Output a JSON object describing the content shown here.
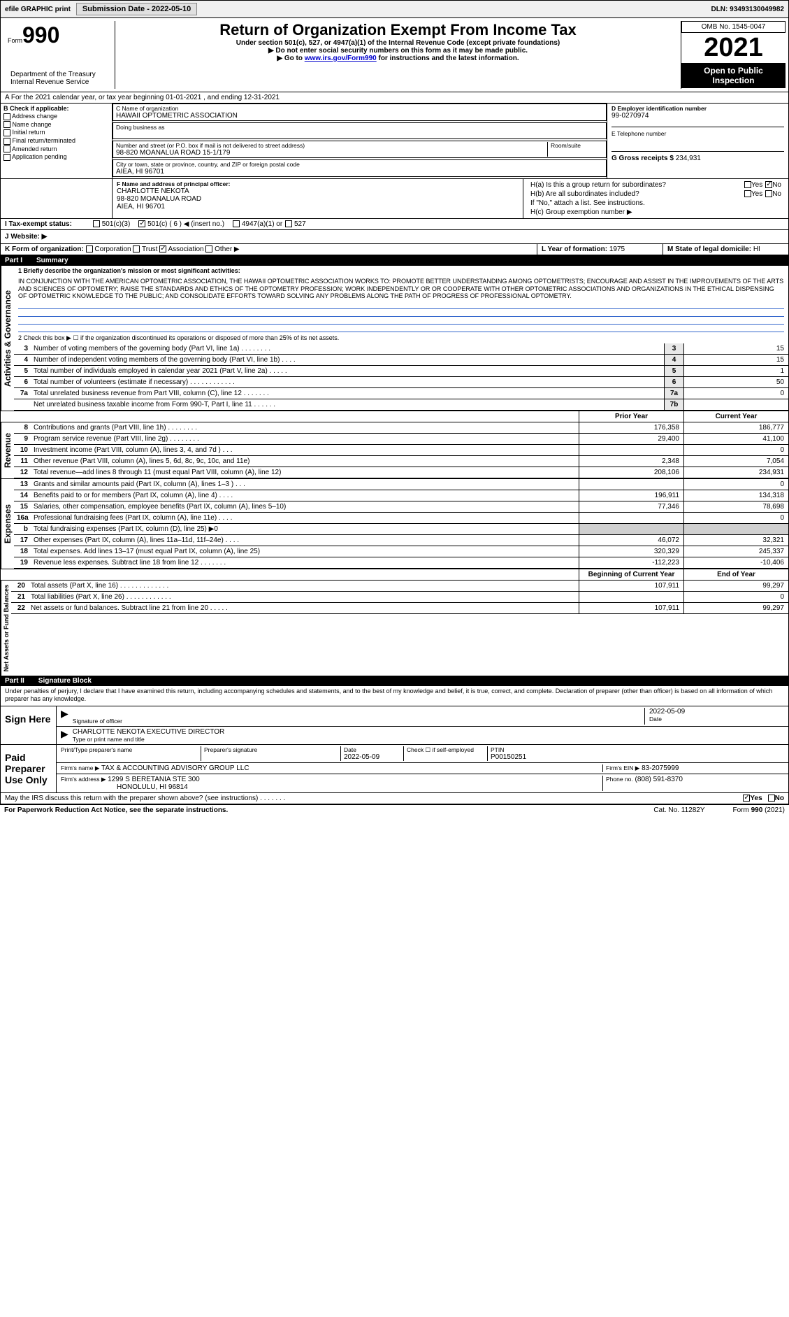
{
  "topbar": {
    "efile": "efile GRAPHIC print",
    "sub_label": "Submission Date - 2022-05-10",
    "dln": "DLN: 93493130049982"
  },
  "header": {
    "form": "Form",
    "form_num": "990",
    "title": "Return of Organization Exempt From Income Tax",
    "sub1": "Under section 501(c), 527, or 4947(a)(1) of the Internal Revenue Code (except private foundations)",
    "sub2": "▶ Do not enter social security numbers on this form as it may be made public.",
    "sub3_pre": "▶ Go to ",
    "sub3_link": "www.irs.gov/Form990",
    "sub3_post": " for instructions and the latest information.",
    "omb": "OMB No. 1545-0047",
    "year": "2021",
    "open": "Open to Public Inspection",
    "dept": "Department of the Treasury\nInternal Revenue Service"
  },
  "ty": {
    "line": "A For the 2021 calendar year, or tax year beginning 01-01-2021  , and ending 12-31-2021"
  },
  "boxB": {
    "label": "B Check if applicable:",
    "items": [
      "Address change",
      "Name change",
      "Initial return",
      "Final return/terminated",
      "Amended return",
      "Application pending"
    ]
  },
  "boxC": {
    "label": "C Name of organization",
    "name": "HAWAII OPTOMETRIC ASSOCIATION",
    "dba_label": "Doing business as",
    "addr_label": "Number and street (or P.O. box if mail is not delivered to street address)",
    "room_label": "Room/suite",
    "addr": "98-820 MOANALUA ROAD 15-1/179",
    "city_label": "City or town, state or province, country, and ZIP or foreign postal code",
    "city": "AIEA, HI  96701"
  },
  "boxD": {
    "label": "D Employer identification number",
    "val": "99-0270974"
  },
  "boxE": {
    "label": "E Telephone number"
  },
  "boxG": {
    "label": "G Gross receipts $",
    "val": "234,931"
  },
  "boxF": {
    "label": "F Name and address of principal officer:",
    "name": "CHARLOTTE NEKOTA",
    "addr1": "98-820 MOANALUA ROAD",
    "addr2": "AIEA, HI  96701"
  },
  "boxH": {
    "a_label": "H(a) Is this a group return for subordinates?",
    "a_yes": "Yes",
    "a_no": "No",
    "b_label": "H(b) Are all subordinates included?",
    "b_note": "If \"No,\" attach a list. See instructions.",
    "c_label": "H(c) Group exemption number ▶"
  },
  "boxI": {
    "label": "I Tax-exempt status:",
    "o1": "501(c)(3)",
    "o2": "501(c) ( 6 ) ◀ (insert no.)",
    "o3": "4947(a)(1) or",
    "o4": "527"
  },
  "boxJ": {
    "label": "J Website: ▶"
  },
  "boxK": {
    "label": "K Form of organization:",
    "o1": "Corporation",
    "o2": "Trust",
    "o3": "Association",
    "o4": "Other ▶"
  },
  "boxL": {
    "label": "L Year of formation:",
    "val": "1975"
  },
  "boxM": {
    "label": "M State of legal domicile:",
    "val": "HI"
  },
  "part1": {
    "hdr_num": "Part I",
    "hdr_title": "Summary",
    "q1": "1  Briefly describe the organization's mission or most significant activities:",
    "mission": "IN CONJUNCTION WITH THE AMERICAN OPTOMETRIC ASSOCIATION, THE HAWAII OPTOMETRIC ASSOCIATION WORKS TO: PROMOTE BETTER UNDERSTANDING AMONG OPTOMETRISTS; ENCOURAGE AND ASSIST IN THE IMPROVEMENTS OF THE ARTS AND SCIENCES OF OPTOMETRY; RAISE THE STANDARDS AND ETHICS OF THE OPTOMETRY PROFESSION; WORK INDEPENDENTLY OR OR COOPERATE WITH OTHER OPTOMETRIC ASSOCIATIONS AND ORGANIZATIONS IN THE ETHICAL DISPENSING OF OPTOMETRIC KNOWLEDGE TO THE PUBLIC; AND CONSOLIDATE EFFORTS TOWARD SOLVING ANY PROBLEMS ALONG THE PATH OF PROGRESS OF PROFESSIONAL OPTOMETRY.",
    "q2": "2  Check this box ▶ ☐ if the organization discontinued its operations or disposed of more than 25% of its net assets.",
    "vlabel_ag": "Activities & Governance",
    "vlabel_rev": "Revenue",
    "vlabel_exp": "Expenses",
    "vlabel_net": "Net Assets or Fund Balances",
    "prior_hdr": "Prior Year",
    "curr_hdr": "Current Year",
    "boy_hdr": "Beginning of Current Year",
    "eoy_hdr": "End of Year",
    "lines_single": [
      {
        "n": "3",
        "d": "Number of voting members of the governing body (Part VI, line 1a)  .    .    .    .    .    .    .    .",
        "b": "3",
        "v": "15"
      },
      {
        "n": "4",
        "d": "Number of independent voting members of the governing body (Part VI, line 1b)  .    .    .    .",
        "b": "4",
        "v": "15"
      },
      {
        "n": "5",
        "d": "Total number of individuals employed in calendar year 2021 (Part V, line 2a)  .    .    .    .    .",
        "b": "5",
        "v": "1"
      },
      {
        "n": "6",
        "d": "Total number of volunteers (estimate if necessary)  .    .    .    .    .    .    .    .    .    .    .    .",
        "b": "6",
        "v": "50"
      },
      {
        "n": "7a",
        "d": "Total unrelated business revenue from Part VIII, column (C), line 12  .    .    .    .    .    .    .",
        "b": "7a",
        "v": "0"
      },
      {
        "n": "",
        "d": "Net unrelated business taxable income from Form 990-T, Part I, line 11  .    .    .    .    .    .",
        "b": "7b",
        "v": ""
      }
    ],
    "lines_rev": [
      {
        "n": "8",
        "d": "Contributions and grants (Part VIII, line 1h)  .    .    .    .    .    .    .    .",
        "p": "176,358",
        "c": "186,777"
      },
      {
        "n": "9",
        "d": "Program service revenue (Part VIII, line 2g)  .    .    .    .    .    .    .    .",
        "p": "29,400",
        "c": "41,100"
      },
      {
        "n": "10",
        "d": "Investment income (Part VIII, column (A), lines 3, 4, and 7d )  .    .    .",
        "p": "",
        "c": "0"
      },
      {
        "n": "11",
        "d": "Other revenue (Part VIII, column (A), lines 5, 6d, 8c, 9c, 10c, and 11e)",
        "p": "2,348",
        "c": "7,054"
      },
      {
        "n": "12",
        "d": "Total revenue—add lines 8 through 11 (must equal Part VIII, column (A), line 12)",
        "p": "208,106",
        "c": "234,931"
      }
    ],
    "lines_exp": [
      {
        "n": "13",
        "d": "Grants and similar amounts paid (Part IX, column (A), lines 1–3 )  .    .    .",
        "p": "",
        "c": "0"
      },
      {
        "n": "14",
        "d": "Benefits paid to or for members (Part IX, column (A), line 4)  .    .    .    .",
        "p": "196,911",
        "c": "134,318"
      },
      {
        "n": "15",
        "d": "Salaries, other compensation, employee benefits (Part IX, column (A), lines 5–10)",
        "p": "77,346",
        "c": "78,698"
      },
      {
        "n": "16a",
        "d": "Professional fundraising fees (Part IX, column (A), line 11e)  .    .    .    .",
        "p": "",
        "c": "0"
      },
      {
        "n": "b",
        "d": "Total fundraising expenses (Part IX, column (D), line 25) ▶0",
        "p": "GRAY",
        "c": "GRAY"
      },
      {
        "n": "17",
        "d": "Other expenses (Part IX, column (A), lines 11a–11d, 11f–24e)  .    .    .    .",
        "p": "46,072",
        "c": "32,321"
      },
      {
        "n": "18",
        "d": "Total expenses. Add lines 13–17 (must equal Part IX, column (A), line 25)",
        "p": "320,329",
        "c": "245,337"
      },
      {
        "n": "19",
        "d": "Revenue less expenses. Subtract line 18 from line 12  .    .    .    .    .    .    .",
        "p": "-112,223",
        "c": "-10,406"
      }
    ],
    "lines_net": [
      {
        "n": "20",
        "d": "Total assets (Part X, line 16)  .    .    .    .    .    .    .    .    .    .    .    .    .",
        "p": "107,911",
        "c": "99,297"
      },
      {
        "n": "21",
        "d": "Total liabilities (Part X, line 26)  .    .    .    .    .    .    .    .    .    .    .    .",
        "p": "",
        "c": "0"
      },
      {
        "n": "22",
        "d": "Net assets or fund balances. Subtract line 21 from line 20  .    .    .    .    .",
        "p": "107,911",
        "c": "99,297"
      }
    ]
  },
  "part2": {
    "hdr_num": "Part II",
    "hdr_title": "Signature Block",
    "decl": "Under penalties of perjury, I declare that I have examined this return, including accompanying schedules and statements, and to the best of my knowledge and belief, it is true, correct, and complete. Declaration of preparer (other than officer) is based on all information of which preparer has any knowledge.",
    "sign_here": "Sign Here",
    "sig_off": "Signature of officer",
    "sig_date": "Date",
    "sig_date_val": "2022-05-09",
    "sig_name": "CHARLOTTE NEKOTA  EXECUTIVE DIRECTOR",
    "sig_name_label": "Type or print name and title",
    "paid": "Paid Preparer Use Only",
    "prep_name_label": "Print/Type preparer's name",
    "prep_sig_label": "Preparer's signature",
    "prep_date_label": "Date",
    "prep_date": "2022-05-09",
    "prep_check": "Check ☐ if self-employed",
    "ptin_label": "PTIN",
    "ptin": "P00150251",
    "firm_name_label": "Firm's name    ▶",
    "firm_name": "TAX & ACCOUNTING ADVISORY GROUP LLC",
    "firm_ein_label": "Firm's EIN ▶",
    "firm_ein": "83-2075999",
    "firm_addr_label": "Firm's address ▶",
    "firm_addr1": "1299 S BERETANIA STE 300",
    "firm_addr2": "HONOLULU, HI  96814",
    "phone_label": "Phone no.",
    "phone": "(808) 591-8370"
  },
  "footer": {
    "discuss": "May the IRS discuss this return with the preparer shown above? (see instructions)  .    .    .    .    .    .    .",
    "yes": "Yes",
    "no": "No",
    "pra": "For Paperwork Reduction Act Notice, see the separate instructions.",
    "cat": "Cat. No. 11282Y",
    "form": "Form 990 (2021)"
  }
}
